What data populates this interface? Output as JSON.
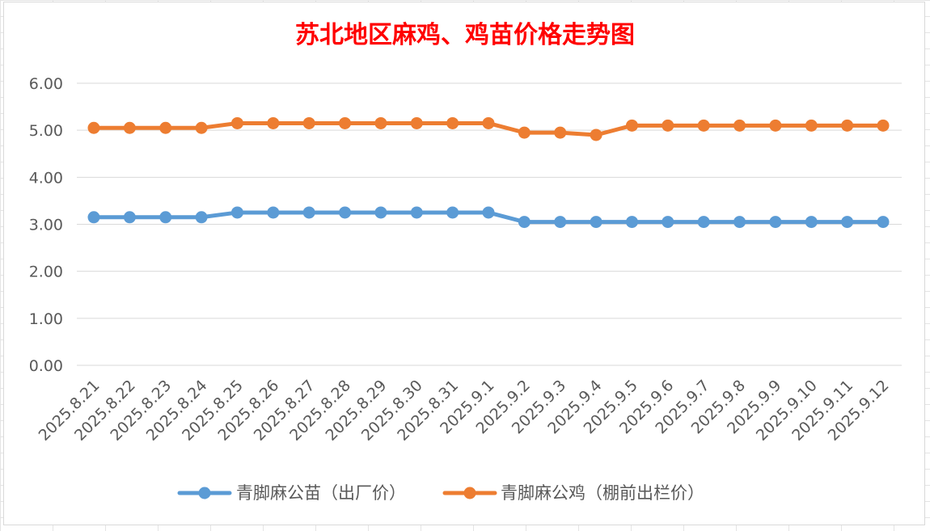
{
  "chart_data": {
    "type": "line",
    "title": "苏北地区麻鸡、鸡苗价格走势图",
    "xlabel": "",
    "ylabel": "",
    "ylim": [
      0,
      6
    ],
    "y_ticks": [
      "0.00",
      "1.00",
      "2.00",
      "3.00",
      "4.00",
      "5.00",
      "6.00"
    ],
    "grid": "horizontal",
    "legend_position": "bottom",
    "categories": [
      "2025.8.21",
      "2025.8.22",
      "2025.8.23",
      "2025.8.24",
      "2025.8.25",
      "2025.8.26",
      "2025.8.27",
      "2025.8.28",
      "2025.8.29",
      "2025.8.30",
      "2025.8.31",
      "2025.9.1",
      "2025.9.2",
      "2025.9.3",
      "2025.9.4",
      "2025.9.5",
      "2025.9.6",
      "2025.9.7",
      "2025.9.8",
      "2025.9.9",
      "2025.9.10",
      "2025.9.11",
      "2025.9.12"
    ],
    "series": [
      {
        "name": "青脚麻公苗（出厂价）",
        "color": "#5b9bd5",
        "values": [
          3.15,
          3.15,
          3.15,
          3.15,
          3.25,
          3.25,
          3.25,
          3.25,
          3.25,
          3.25,
          3.25,
          3.25,
          3.05,
          3.05,
          3.05,
          3.05,
          3.05,
          3.05,
          3.05,
          3.05,
          3.05,
          3.05,
          3.05
        ]
      },
      {
        "name": "青脚麻公鸡（棚前出栏价）",
        "color": "#ed7d31",
        "values": [
          5.05,
          5.05,
          5.05,
          5.05,
          5.15,
          5.15,
          5.15,
          5.15,
          5.15,
          5.15,
          5.15,
          5.15,
          4.95,
          4.95,
          4.9,
          5.1,
          5.1,
          5.1,
          5.1,
          5.1,
          5.1,
          5.1,
          5.1
        ]
      }
    ]
  }
}
